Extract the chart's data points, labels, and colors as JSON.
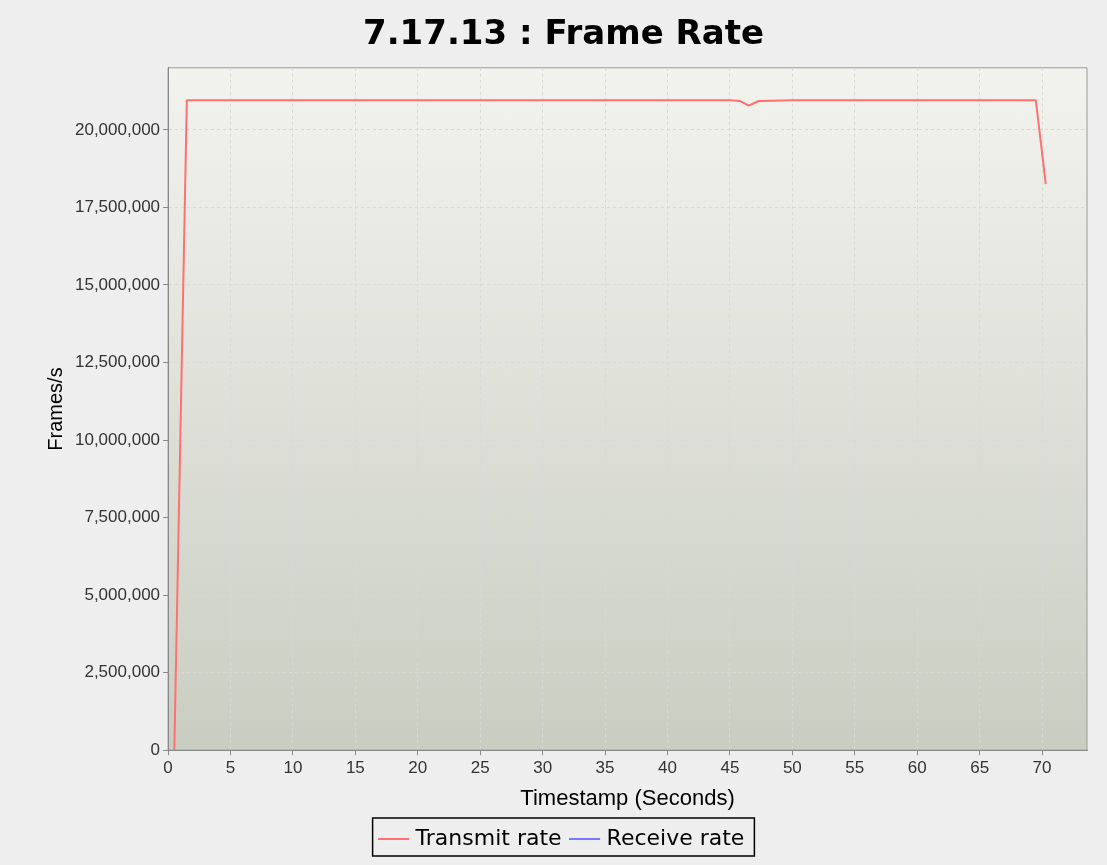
{
  "chart_data": {
    "type": "line",
    "title": "7.17.13 : Frame Rate",
    "xlabel": "Timestamp (Seconds)",
    "ylabel": "Frames/s",
    "xlim": [
      0,
      73.6
    ],
    "xticks": [
      0,
      5,
      10,
      15,
      20,
      25,
      30,
      35,
      40,
      45,
      50,
      55,
      60,
      65,
      70
    ],
    "ylim": [
      0,
      22000000
    ],
    "yticks": [
      0,
      {
        "value": 2500000,
        "label": "2,500,000"
      },
      {
        "value": 5000000,
        "label": "5,000,000"
      },
      {
        "value": 7500000,
        "label": "7,500,000"
      },
      {
        "value": 10000000,
        "label": "10,000,000"
      },
      {
        "value": 12500000,
        "label": "12,500,000"
      },
      {
        "value": 15000000,
        "label": "15,000,000"
      },
      {
        "value": 17500000,
        "label": "17,500,000"
      },
      {
        "value": 20000000,
        "label": "20,000,000"
      }
    ],
    "grid": true,
    "legend": "bottom",
    "marker": "none",
    "line_style": "solid",
    "series": [
      {
        "name": "Transmit rate",
        "color": "#ff7070",
        "x": [
          0.5,
          1.5,
          5,
          10,
          15,
          20,
          25,
          30,
          35,
          40,
          45,
          45.8,
          46.5,
          47.3,
          50,
          55,
          60,
          65,
          69.5,
          70.3
        ],
        "values": [
          0,
          20950000,
          20950000,
          20950000,
          20950000,
          20950000,
          20950000,
          20950000,
          20950000,
          20950000,
          20950000,
          20930000,
          20780000,
          20930000,
          20950000,
          20950000,
          20950000,
          20950000,
          20950000,
          18250000
        ]
      },
      {
        "name": "Receive rate",
        "color": "#7777ff"
      }
    ]
  }
}
